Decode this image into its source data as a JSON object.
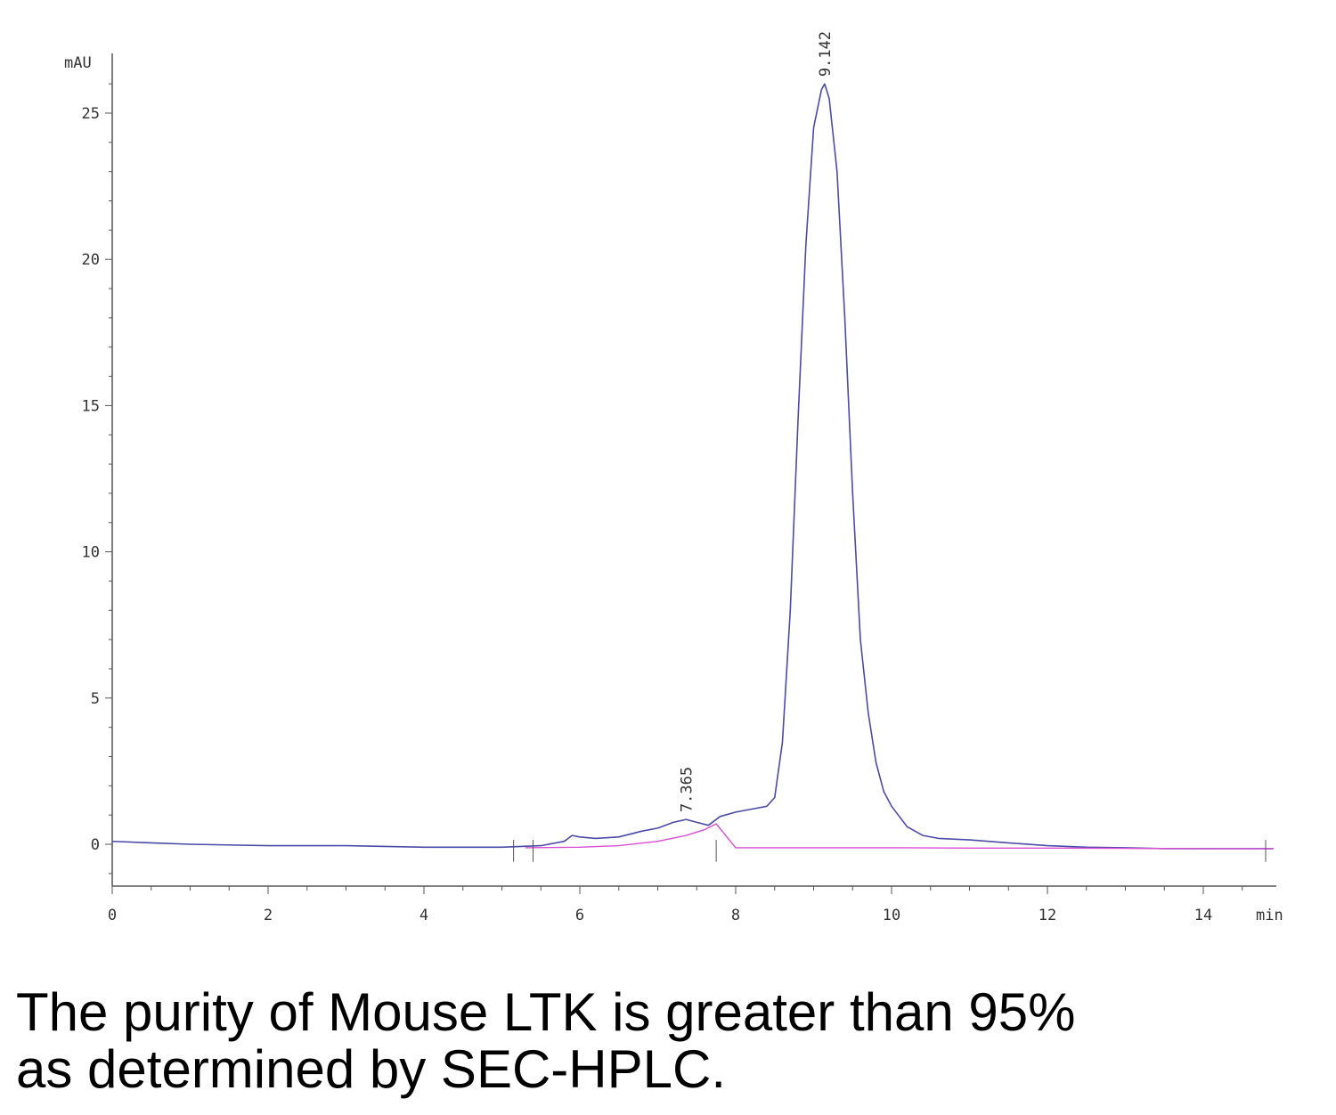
{
  "chart_data": {
    "type": "line",
    "title": "",
    "xlabel": "min",
    "ylabel": "mAU",
    "xlim": [
      0,
      14.9
    ],
    "ylim": [
      -1.4,
      27.1
    ],
    "x_ticks": [
      0,
      2,
      4,
      6,
      8,
      10,
      12,
      14
    ],
    "y_ticks": [
      0,
      5,
      10,
      15,
      20,
      25
    ],
    "grid": false,
    "legend": "none",
    "colors": {
      "signal": "#4a4aa8",
      "baseline": "#d94fd4",
      "axis": "#555555"
    },
    "series": [
      {
        "x": [
          0,
          0.5,
          1,
          2,
          3,
          4,
          5,
          5.5,
          5.8,
          5.9,
          6.0,
          6.2,
          6.5,
          6.8,
          7.0,
          7.2,
          7.365,
          7.5,
          7.65,
          7.8,
          8.0,
          8.2,
          8.4,
          8.5,
          8.6,
          8.7,
          8.8,
          8.9,
          9.0,
          9.1,
          9.142,
          9.2,
          9.3,
          9.4,
          9.5,
          9.6,
          9.7,
          9.8,
          9.9,
          10.0,
          10.2,
          10.4,
          10.6,
          11,
          11.5,
          12,
          12.5,
          13,
          13.5,
          14,
          14.5,
          14.9
        ],
        "y": [
          0.1,
          0.05,
          0.0,
          -0.05,
          -0.05,
          -0.1,
          -0.1,
          -0.05,
          0.1,
          0.3,
          0.25,
          0.2,
          0.25,
          0.45,
          0.55,
          0.75,
          0.85,
          0.75,
          0.65,
          0.95,
          1.1,
          1.2,
          1.3,
          1.6,
          3.5,
          8.0,
          14.5,
          20.5,
          24.5,
          25.8,
          26.0,
          25.5,
          23.0,
          18.0,
          12.0,
          7.0,
          4.5,
          2.8,
          1.8,
          1.3,
          0.6,
          0.3,
          0.2,
          0.15,
          0.05,
          -0.05,
          -0.1,
          -0.12,
          -0.15,
          -0.15,
          -0.15,
          -0.15
        ]
      },
      {
        "x": [
          5.3,
          6.0,
          6.5,
          7.0,
          7.365,
          7.6,
          7.75,
          8.0,
          9.0,
          10.0,
          11.0,
          12.0,
          13.0,
          14.0,
          14.9
        ],
        "y": [
          -0.12,
          -0.1,
          -0.05,
          0.1,
          0.3,
          0.5,
          0.7,
          -0.12,
          -0.12,
          -0.12,
          -0.13,
          -0.13,
          -0.14,
          -0.15,
          -0.15
        ]
      }
    ],
    "annotations": [
      {
        "x": 7.365,
        "y": 0.85,
        "text": "7.365"
      },
      {
        "x": 9.142,
        "y": 26.0,
        "text": "9.142"
      }
    ]
  },
  "caption": {
    "line1": "The purity of Mouse LTK is greater than 95%",
    "line2": "as determined by SEC-HPLC."
  }
}
